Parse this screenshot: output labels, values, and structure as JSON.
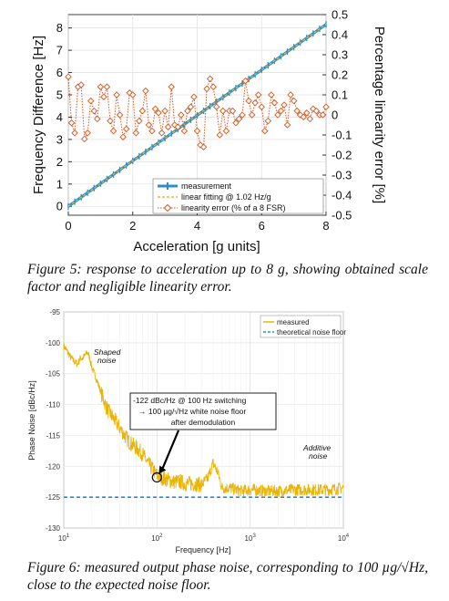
{
  "charts": [
    {
      "type": "line",
      "title": "",
      "xlabel": "Acceleration [g units]",
      "ylabel": "Frequency Difference [Hz]",
      "y2label": "Percentage linearity error [%]",
      "xlim": [
        0,
        8
      ],
      "ylim": [
        -0.4,
        8.6
      ],
      "y2lim": [
        -0.5,
        0.5
      ],
      "xticks": [
        "0",
        "2",
        "4",
        "6",
        "8"
      ],
      "yticks": [
        "0",
        "1",
        "2",
        "3",
        "4",
        "5",
        "6",
        "7",
        "8"
      ],
      "y2ticks": [
        "-0.5",
        "-0.4",
        "-0.3",
        "-0.2",
        "-0.1",
        "0",
        "0.1",
        "0.2",
        "0.3",
        "0.4",
        "0.5"
      ],
      "legend_position": "bottom-right",
      "colors": {
        "measurement": "#2b8ec9",
        "fit": "#f2b630",
        "error": "#d95319"
      },
      "series": [
        {
          "name": "measurement",
          "axis": "left",
          "x": [
            0,
            8
          ],
          "y": [
            0,
            8.16
          ]
        },
        {
          "name": "linear fitting @ 1.02 Hz/g",
          "axis": "left",
          "x": [
            0,
            8
          ],
          "y": [
            0,
            8.16
          ]
        },
        {
          "name": "linearity error (% of a 8 FSR)",
          "axis": "right",
          "x": [
            0,
            0.1,
            0.2,
            0.3,
            0.4,
            0.5,
            0.6,
            0.7,
            0.8,
            0.9,
            1.0,
            1.1,
            1.2,
            1.3,
            1.4,
            1.5,
            1.6,
            1.7,
            1.8,
            1.9,
            2.0,
            2.1,
            2.2,
            2.3,
            2.4,
            2.5,
            2.6,
            2.7,
            2.8,
            2.9,
            3.0,
            3.1,
            3.2,
            3.3,
            3.4,
            3.5,
            3.6,
            3.7,
            3.8,
            3.9,
            4.0,
            4.1,
            4.2,
            4.3,
            4.4,
            4.5,
            4.6,
            4.7,
            4.8,
            4.9,
            5.0,
            5.1,
            5.2,
            5.3,
            5.4,
            5.5,
            5.6,
            5.7,
            5.8,
            5.9,
            6.0,
            6.1,
            6.2,
            6.3,
            6.4,
            6.5,
            6.6,
            6.7,
            6.8,
            6.9,
            7.0,
            7.1,
            7.2,
            7.3,
            7.4,
            7.5,
            7.6,
            7.7,
            7.8,
            7.9,
            8.0
          ],
          "y": [
            0.19,
            -0.04,
            -0.09,
            0.14,
            0.15,
            -0.12,
            -0.09,
            0.07,
            0.02,
            -0.02,
            0.14,
            0.09,
            0.14,
            -0.03,
            -0.08,
            0.1,
            0.0,
            -0.11,
            -0.07,
            0.11,
            0.1,
            -0.09,
            -0.03,
            0.02,
            0.12,
            -0.05,
            -0.08,
            0.03,
            0.01,
            -0.09,
            0.02,
            -0.06,
            0.14,
            -0.05,
            -0.06,
            0.0,
            -0.08,
            0.02,
            0.04,
            0.09,
            -0.08,
            -0.15,
            -0.16,
            0.13,
            0.18,
            0.14,
            0.04,
            -0.1,
            0.02,
            -0.08,
            0.02,
            0.02,
            -0.04,
            -0.02,
            0.0,
            0.17,
            0.07,
            0.0,
            0.06,
            0.1,
            0.04,
            -0.08,
            -0.03,
            0.1,
            0.06,
            0.0,
            0.02,
            0.05,
            -0.05,
            0.1,
            0.07,
            0.02,
            0.0,
            -0.01,
            0.01,
            -0.02,
            0.03,
            0.02,
            0.0,
            0.0,
            0.04
          ]
        }
      ]
    },
    {
      "type": "line",
      "title": "",
      "xlabel": "Frequency [Hz]",
      "ylabel": "Phase Noise [dBc/Hz]",
      "xscale": "log",
      "xlim": [
        10,
        10000
      ],
      "ylim": [
        -130,
        -95
      ],
      "xticks": [
        10,
        100,
        1000,
        10000
      ],
      "yticks": [
        "-95",
        "-100",
        "-105",
        "-110",
        "-115",
        "-120",
        "-125",
        "-130"
      ],
      "legend_position": "top-right",
      "colors": {
        "measured": "#eab308",
        "floor": "#2b8ec9"
      },
      "series": [
        {
          "name": "measured",
          "x": [
            10,
            11,
            12,
            13,
            14,
            15,
            16,
            17,
            18,
            19,
            20,
            22,
            25,
            28,
            30,
            35,
            40,
            45,
            50,
            60,
            70,
            80,
            90,
            100,
            120,
            150,
            180,
            200,
            250,
            300,
            350,
            400,
            450,
            500,
            600,
            700,
            800,
            1000,
            1500,
            2000,
            3000,
            4000,
            5000,
            7000,
            10000
          ],
          "y": [
            -100.5,
            -101.5,
            -102.5,
            -103,
            -103.5,
            -102.5,
            -102.5,
            -102,
            -101.5,
            -102.5,
            -104,
            -105.5,
            -108,
            -110,
            -111,
            -112.5,
            -113.8,
            -115,
            -116,
            -117,
            -118,
            -119.5,
            -120.5,
            -121.5,
            -122,
            -122.5,
            -122.5,
            -122.8,
            -122.8,
            -123,
            -122,
            -119.5,
            -121,
            -123.5,
            -123.5,
            -123.8,
            -124,
            -123.8,
            -124,
            -124,
            -123.8,
            -123.8,
            -123.8,
            -123.8,
            -123.5
          ]
        },
        {
          "name": "theoretical noise floor",
          "x": [
            10,
            10000
          ],
          "y": [
            -125,
            -125
          ]
        }
      ],
      "xtick_labels": [
        {
          "base": "10",
          "exp": "1"
        },
        {
          "base": "10",
          "exp": "2"
        },
        {
          "base": "10",
          "exp": "3"
        },
        {
          "base": "10",
          "exp": "4"
        }
      ],
      "annotations": {
        "shaped_1": "Shaped",
        "shaped_2": "noise",
        "additive_1": "Additive",
        "additive_2": "noise",
        "box_line1": "-122 dBc/Hz @ 100 Hz switching",
        "box_line2": "→ 100 µg/√Hz white noise floor",
        "box_line3": "after demodulation"
      }
    }
  ],
  "captions": {
    "fig5": "Figure 5: response to acceleration up to 8 g, showing obtained scale factor and negligible linearity error.",
    "fig6": "Figure 6: measured output phase noise, corresponding to 100 µg/√Hz, close to the expected noise floor."
  }
}
